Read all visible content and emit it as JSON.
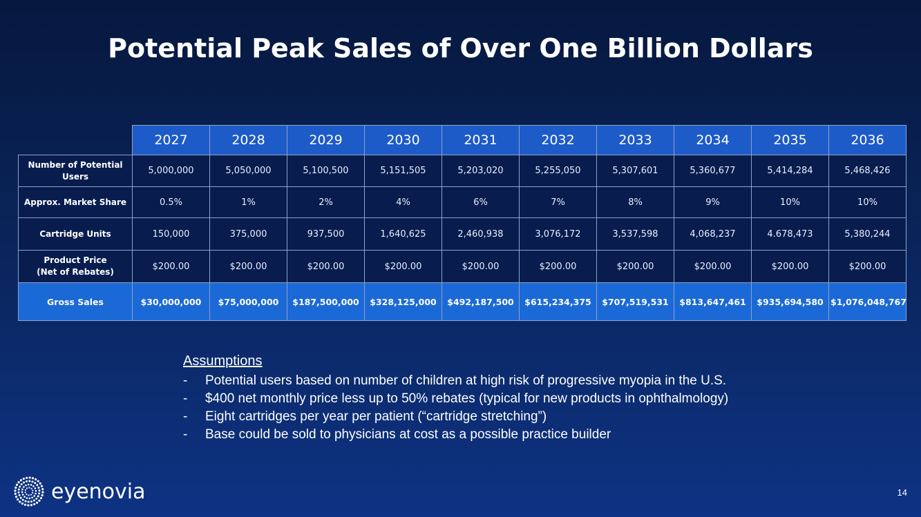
{
  "title": "Potential Peak Sales of Over One Billion Dollars",
  "table": {
    "years": [
      "2027",
      "2028",
      "2029",
      "2030",
      "2031",
      "2032",
      "2033",
      "2034",
      "2035",
      "2036"
    ],
    "rows": [
      {
        "label_line1": "Number of Potential",
        "label_line2": "Users",
        "values": [
          "5,000,000",
          "5,050,000",
          "5,100,500",
          "5,151,505",
          "5,203,020",
          "5,255,050",
          "5,307,601",
          "5,360,677",
          "5,414,284",
          "5,468,426"
        ]
      },
      {
        "label_line1": "Approx. Market Share",
        "label_line2": "",
        "values": [
          "0.5%",
          "1%",
          "2%",
          "4%",
          "6%",
          "7%",
          "8%",
          "9%",
          "10%",
          "10%"
        ]
      },
      {
        "label_line1": "Cartridge Units",
        "label_line2": "",
        "values": [
          "150,000",
          "375,000",
          "937,500",
          "1,640,625",
          "2,460,938",
          "3,076,172",
          "3,537,598",
          "4,068,237",
          "4.678,473",
          "5,380,244"
        ]
      },
      {
        "label_line1": "Product Price",
        "label_line2": "(Net of Rebates)",
        "values": [
          "$200.00",
          "$200.00",
          "$200.00",
          "$200.00",
          "$200.00",
          "$200.00",
          "$200.00",
          "$200.00",
          "$200.00",
          "$200.00"
        ]
      },
      {
        "label_line1": "Gross Sales",
        "label_line2": "",
        "values": [
          "$30,000,000",
          "$75,000,000",
          "$187,500,000",
          "$328,125,000",
          "$492,187,500",
          "$615,234,375",
          "$707,519,531",
          "$813,647,461",
          "$935,694,580",
          "$1,076,048,767"
        ]
      }
    ]
  },
  "assumptions": {
    "title": "Assumptions",
    "items": [
      "Potential users based on number of children at high risk of progressive myopia in the U.S.",
      "$400 net monthly price less up to 50% rebates (typical for new products in ophthalmology)",
      "Eight cartridges per year per patient (“cartridge stretching”)",
      "Base could be sold to physicians at cost as a possible practice builder"
    ],
    "bullet": "-"
  },
  "logo": {
    "text": "eyenovia",
    "icon": "dot-burst-logo-icon"
  },
  "page_number": "14",
  "colors": {
    "background_top": "#06183f",
    "background_bottom": "#0e3384",
    "header_fill": "#1d5bc9",
    "gross_row_fill": "#1b69d6",
    "cell_fill": "#081d4e"
  }
}
